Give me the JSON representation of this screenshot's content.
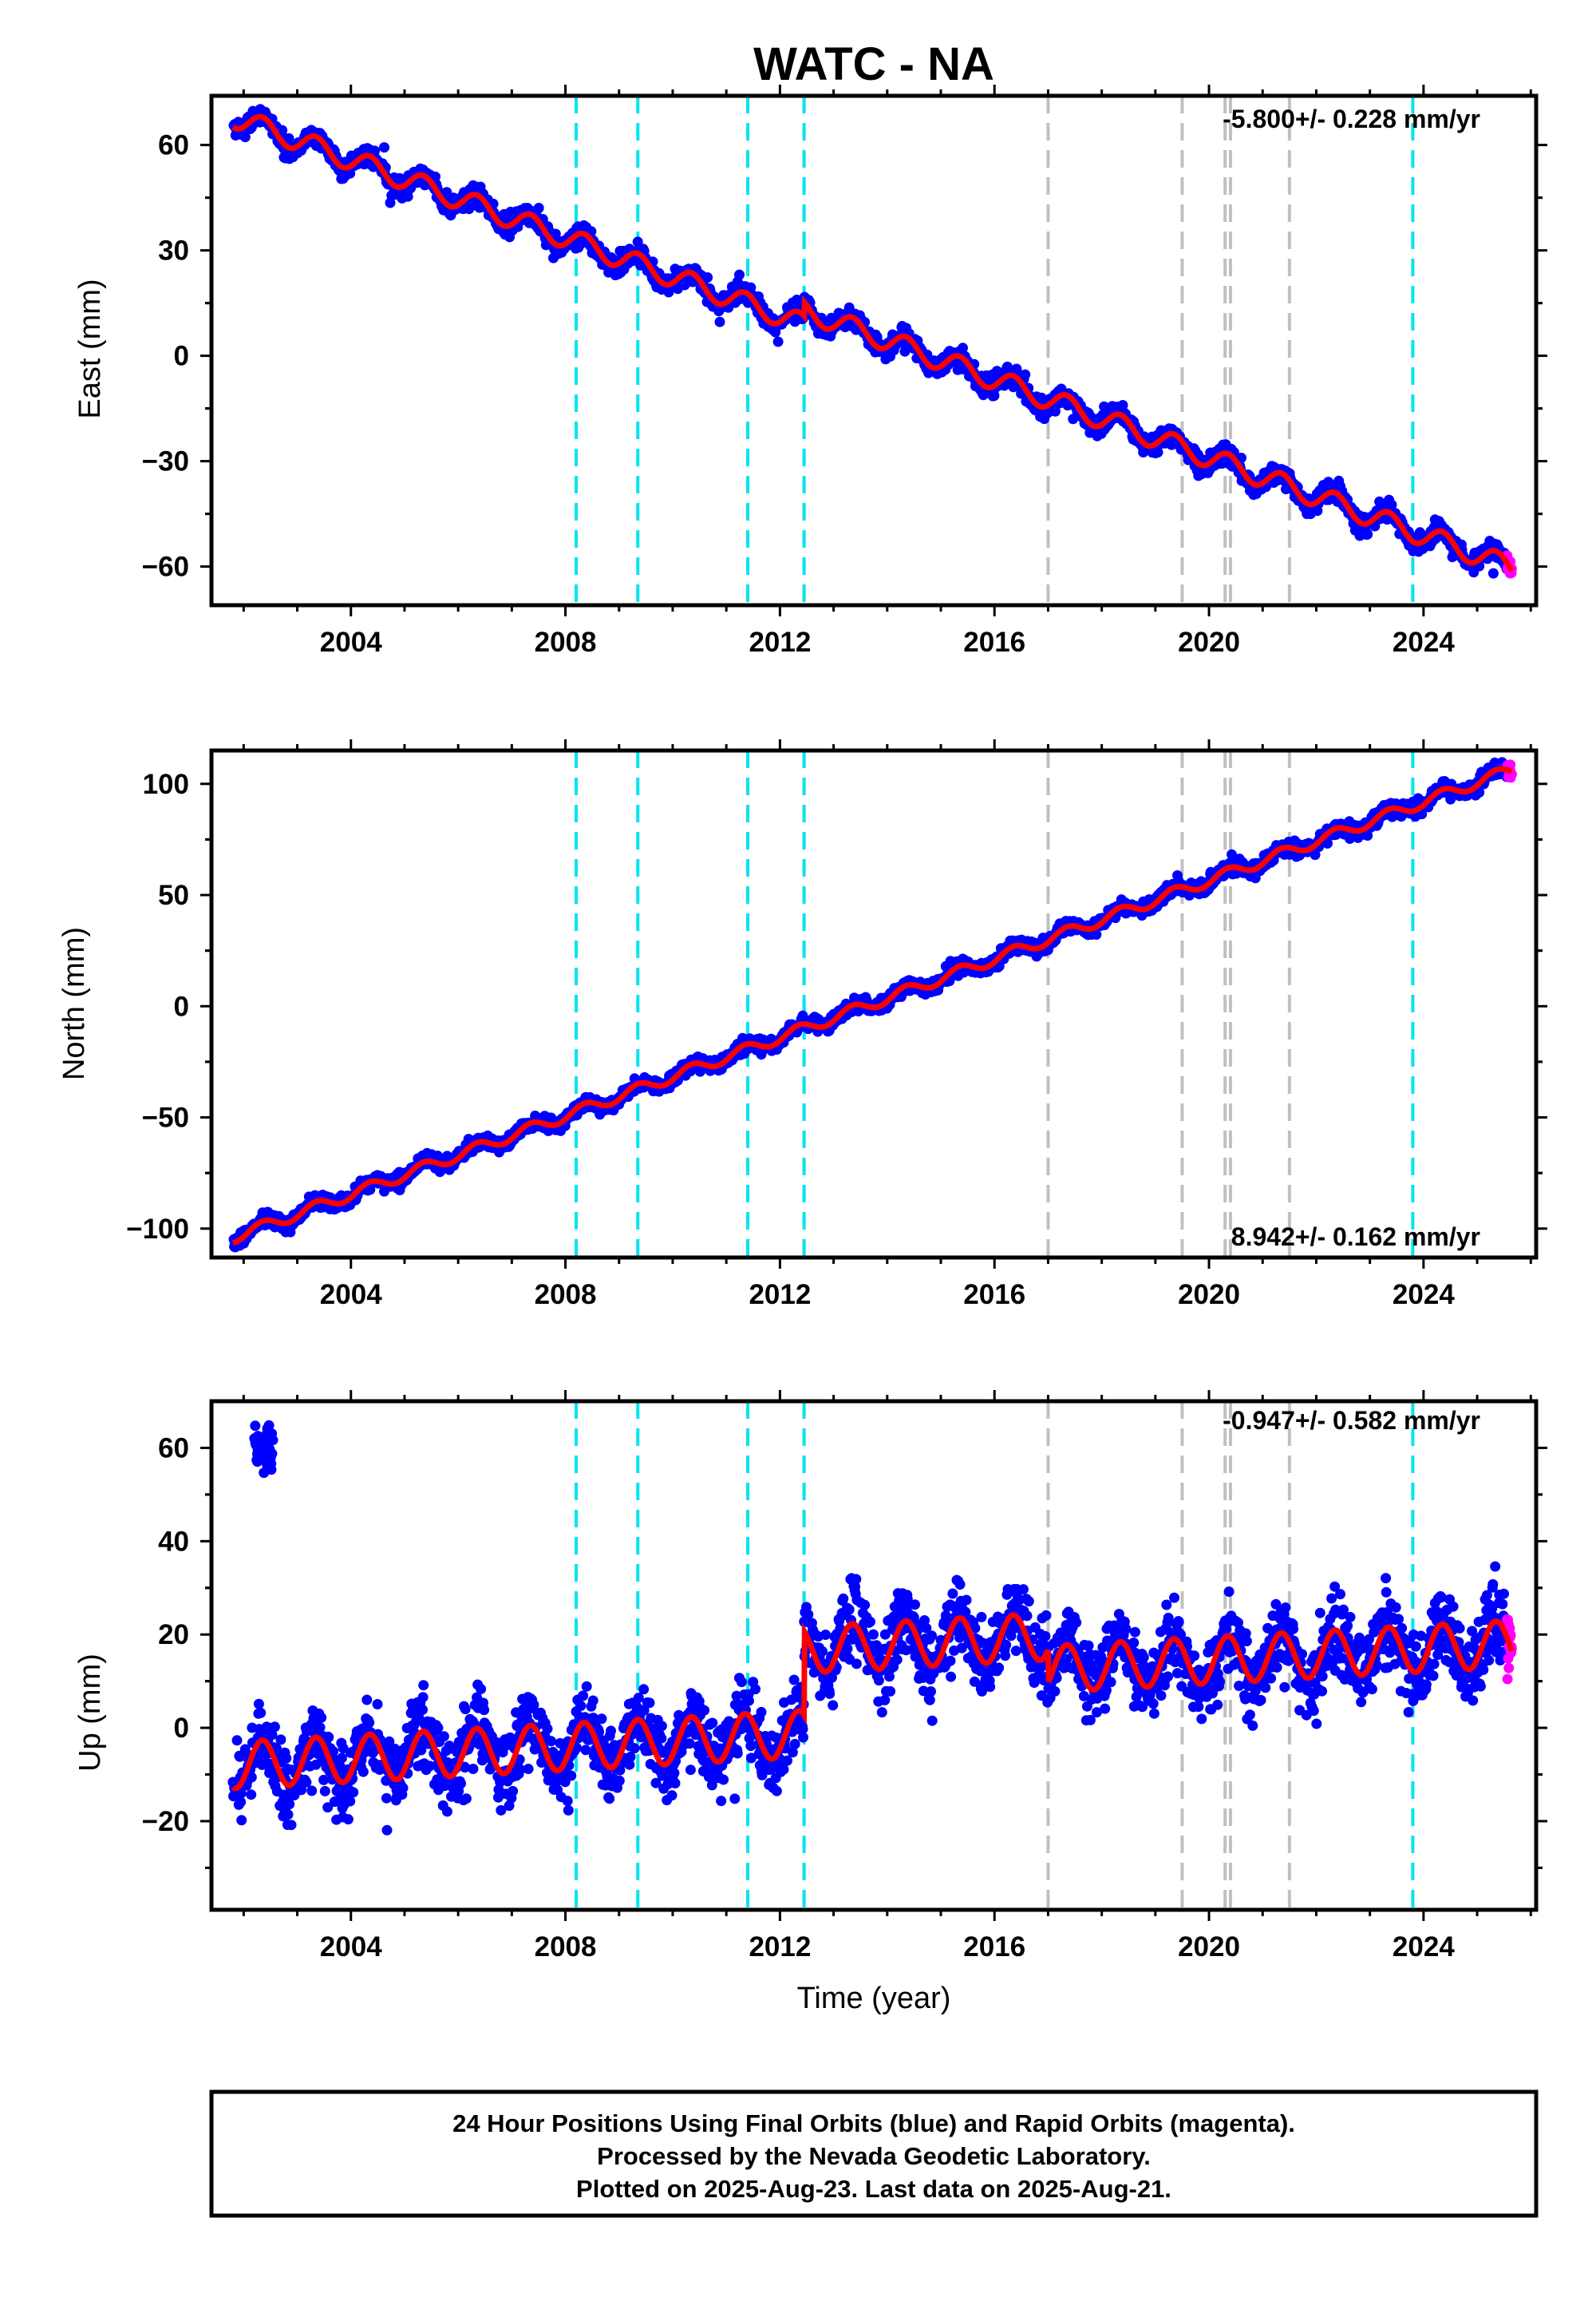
{
  "title": "WATC - NA",
  "footer": {
    "line1": "24 Hour Positions Using Final Orbits (blue) and Rapid Orbits (magenta).",
    "line2": "Processed by the Nevada Geodetic Laboratory.",
    "line3": "Plotted on 2025-Aug-23. Last data on 2025-Aug-21."
  },
  "colors": {
    "final_orbits": "#0000ff",
    "rapid_orbits": "#ff00ff",
    "model": "#ff0000",
    "equipment_change": "#00e5ee",
    "earthquake_event": "#c0c0c0"
  },
  "chart_data": [
    {
      "type": "scatter",
      "ylabel": "East (mm)",
      "xlabel": "",
      "rate_label": "-5.800+/- 0.228 mm/yr",
      "xlim": [
        2001.4,
        2026.1
      ],
      "ylim": [
        -71,
        74
      ],
      "x_ticks": [
        "2004",
        "2008",
        "2012",
        "2016",
        "2020",
        "2024"
      ],
      "y_ticks": [
        "60",
        "30",
        "0",
        "−30",
        "−60"
      ],
      "y_tick_values": [
        60,
        30,
        0,
        -30,
        -60
      ],
      "trend": {
        "start_year": 2001.8,
        "start_value": 68,
        "end_year": 2025.6,
        "end_value": -64
      },
      "seasonal_amplitude": 3,
      "steps": [
        {
          "year": 2012.45,
          "offset": 4
        }
      ],
      "scatter_sd": 2.0,
      "equipment_change_lines": [
        2008.2,
        2009.35,
        2011.4,
        2012.45,
        2023.8
      ],
      "earthquake_lines": [
        2017.0,
        2019.5,
        2020.3,
        2020.4,
        2021.5
      ]
    },
    {
      "type": "scatter",
      "ylabel": "North (mm)",
      "xlabel": "",
      "rate_label": "8.942+/- 0.162 mm/yr",
      "xlim": [
        2001.4,
        2026.1
      ],
      "ylim": [
        -113,
        115
      ],
      "x_ticks": [
        "2004",
        "2008",
        "2012",
        "2016",
        "2020",
        "2024"
      ],
      "y_ticks": [
        "100",
        "50",
        "0",
        "−50",
        "−100"
      ],
      "y_tick_values": [
        100,
        50,
        0,
        -50,
        -100
      ],
      "trend": {
        "start_year": 2001.8,
        "start_value": -104,
        "end_year": 2025.6,
        "end_value": 106
      },
      "seasonal_amplitude": 2.5,
      "steps": [],
      "scatter_sd": 2.2,
      "equipment_change_lines": [
        2008.2,
        2009.35,
        2011.4,
        2012.45,
        2023.8
      ],
      "earthquake_lines": [
        2017.0,
        2019.5,
        2020.3,
        2020.4,
        2021.5
      ]
    },
    {
      "type": "scatter",
      "ylabel": "Up (mm)",
      "xlabel": "Time (year)",
      "rate_label": "-0.947+/- 0.582 mm/yr",
      "xlim": [
        2001.4,
        2026.1
      ],
      "ylim": [
        -39,
        70
      ],
      "x_ticks": [
        "2004",
        "2008",
        "2012",
        "2016",
        "2020",
        "2024"
      ],
      "y_ticks": [
        "60",
        "40",
        "20",
        "0",
        "−20"
      ],
      "y_tick_values": [
        60,
        40,
        20,
        0,
        -20
      ],
      "trend": {
        "start_year": 2001.8,
        "start_value": -8,
        "end_year": 2025.6,
        "end_value": 7
      },
      "seasonal_amplitude": 5,
      "steps": [
        {
          "year": 2012.45,
          "offset": 18
        },
        {
          "year": 2017.0,
          "offset": -7
        }
      ],
      "scatter_sd": 5.5,
      "outlier_cluster": {
        "year_start": 2002.2,
        "year_end": 2002.55,
        "value": 60
      },
      "equipment_change_lines": [
        2008.2,
        2009.35,
        2011.4,
        2012.45,
        2023.8
      ],
      "earthquake_lines": [
        2017.0,
        2019.5,
        2020.3,
        2020.4,
        2021.5
      ]
    }
  ]
}
